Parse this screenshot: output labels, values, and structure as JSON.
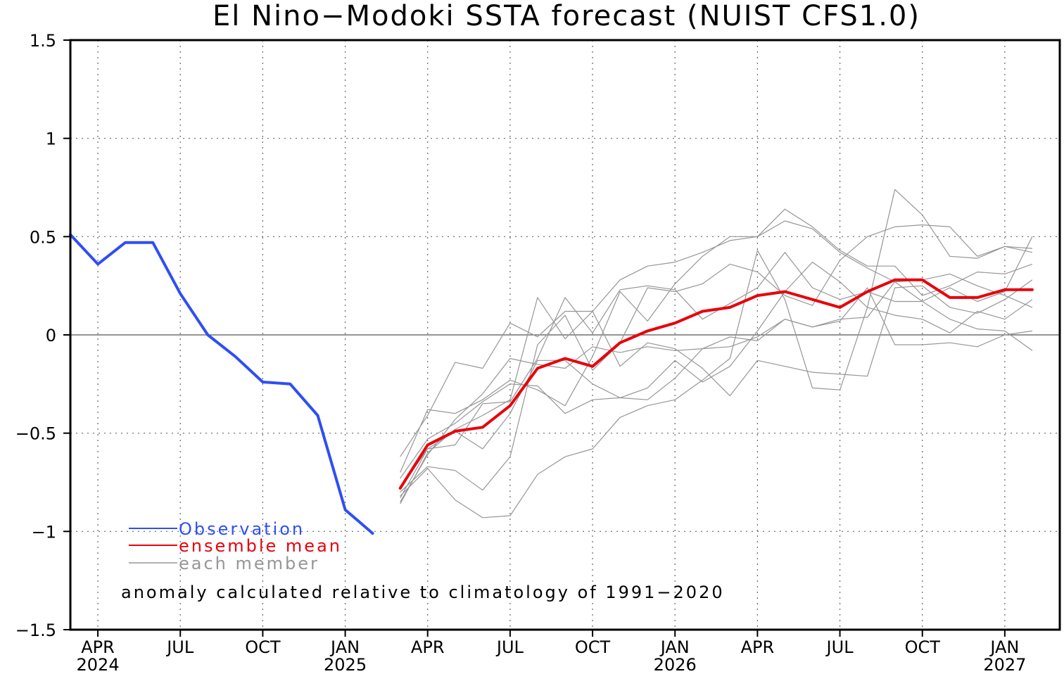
{
  "chart_data": {
    "type": "line",
    "title": "El Nino−Modoki SSTA forecast (NUIST CFS1.0)",
    "xlabel": "",
    "ylabel": "",
    "ylim": [
      -1.5,
      1.5
    ],
    "yticks": [
      {
        "value": 1.5,
        "label": "1.5"
      },
      {
        "value": 1,
        "label": "1"
      },
      {
        "value": 0.5,
        "label": "0.5"
      },
      {
        "value": 0,
        "label": "0"
      },
      {
        "value": -0.5,
        "label": "−0.5"
      },
      {
        "value": -1,
        "label": "−1"
      },
      {
        "value": -1.5,
        "label": "−1.5"
      }
    ],
    "xlim": [
      "2024-03",
      "2027-03"
    ],
    "xticks": [
      {
        "month": "2024-04",
        "label": "APR",
        "year": "2024"
      },
      {
        "month": "2024-07",
        "label": "JUL",
        "year": ""
      },
      {
        "month": "2024-10",
        "label": "OCT",
        "year": ""
      },
      {
        "month": "2025-01",
        "label": "JAN",
        "year": "2025"
      },
      {
        "month": "2025-04",
        "label": "APR",
        "year": ""
      },
      {
        "month": "2025-07",
        "label": "JUL",
        "year": ""
      },
      {
        "month": "2025-10",
        "label": "OCT",
        "year": ""
      },
      {
        "month": "2026-01",
        "label": "JAN",
        "year": "2026"
      },
      {
        "month": "2026-04",
        "label": "APR",
        "year": ""
      },
      {
        "month": "2026-07",
        "label": "JUL",
        "year": ""
      },
      {
        "month": "2026-10",
        "label": "OCT",
        "year": ""
      },
      {
        "month": "2027-01",
        "label": "JAN",
        "year": "2027"
      }
    ],
    "grid": true,
    "zero_line": true,
    "legend_position": "bottom-left",
    "annotation": "anomaly calculated relative to climatology of 1991−2020",
    "series": [
      {
        "name": "Observation",
        "color": "#2e4ef5",
        "width": 4,
        "x": [
          "2024-03",
          "2024-04",
          "2024-05",
          "2024-06",
          "2024-07",
          "2024-08",
          "2024-09",
          "2024-10",
          "2024-11",
          "2024-12",
          "2025-01",
          "2025-02"
        ],
        "values": [
          0.51,
          0.36,
          0.47,
          0.47,
          0.21,
          0.0,
          -0.11,
          -0.24,
          -0.25,
          -0.41,
          -0.89,
          -1.01
        ]
      },
      {
        "name": "ensemble mean",
        "color": "#e8000b",
        "width": 4,
        "x": [
          "2025-03",
          "2025-04",
          "2025-05",
          "2025-06",
          "2025-07",
          "2025-08",
          "2025-09",
          "2025-10",
          "2025-11",
          "2025-12",
          "2026-01",
          "2026-02",
          "2026-03",
          "2026-04",
          "2026-05",
          "2026-06",
          "2026-07",
          "2026-08",
          "2026-09",
          "2026-10",
          "2026-11",
          "2026-12",
          "2027-01",
          "2027-02"
        ],
        "values": [
          -0.78,
          -0.56,
          -0.49,
          -0.47,
          -0.36,
          -0.17,
          -0.12,
          -0.16,
          -0.04,
          0.02,
          0.06,
          0.12,
          0.14,
          0.2,
          0.22,
          0.18,
          0.14,
          0.22,
          0.28,
          0.28,
          0.19,
          0.19,
          0.23,
          0.23
        ]
      }
    ],
    "members": {
      "name": "each member",
      "color": "#969696",
      "width": 1.2,
      "x": [
        "2025-03",
        "2025-04",
        "2025-05",
        "2025-06",
        "2025-07",
        "2025-08",
        "2025-09",
        "2025-10",
        "2025-11",
        "2025-12",
        "2026-01",
        "2026-02",
        "2026-03",
        "2026-04",
        "2026-05",
        "2026-06",
        "2026-07",
        "2026-08",
        "2026-09",
        "2026-10",
        "2026-11",
        "2026-12",
        "2027-01",
        "2027-02"
      ],
      "values": [
        [
          -0.62,
          -0.41,
          -0.14,
          -0.17,
          0.06,
          -0.01,
          0.12,
          0.12,
          0.28,
          0.35,
          0.37,
          0.42,
          0.48,
          0.5,
          0.64,
          0.55,
          0.43,
          0.35,
          0.35,
          0.2,
          0.25,
          0.32,
          0.31,
          0.36
        ],
        [
          -0.7,
          -0.38,
          -0.4,
          -0.33,
          -0.23,
          -0.28,
          -0.36,
          -0.11,
          0.22,
          0.07,
          0.26,
          0.4,
          0.5,
          0.5,
          0.58,
          0.54,
          0.42,
          0.34,
          0.27,
          0.28,
          0.31,
          0.25,
          0.2,
          0.14
        ],
        [
          -0.73,
          -0.53,
          -0.45,
          -0.34,
          -0.25,
          -0.26,
          -0.4,
          -0.33,
          -0.32,
          -0.27,
          -0.13,
          -0.24,
          -0.16,
          0.02,
          0.22,
          0.37,
          0.27,
          0.14,
          0.1,
          0.08,
          0.01,
          0.12,
          0.08,
          0.18
        ],
        [
          -0.78,
          -0.58,
          -0.49,
          -0.58,
          -0.4,
          -0.13,
          -0.13,
          -0.25,
          -0.32,
          -0.33,
          -0.22,
          -0.07,
          -0.06,
          -0.01,
          0.08,
          0.04,
          0.08,
          0.09,
          0.27,
          0.17,
          0.24,
          0.17,
          0.22,
          0.5
        ],
        [
          -0.8,
          -0.67,
          -0.69,
          -0.79,
          -0.62,
          -0.05,
          0.1,
          -0.18,
          -0.04,
          0.24,
          0.22,
          0.26,
          0.36,
          0.32,
          0.2,
          0.15,
          0.38,
          0.5,
          0.55,
          0.56,
          0.55,
          0.4,
          0.45,
          0.44
        ],
        [
          -0.82,
          -0.68,
          -0.84,
          -0.93,
          -0.92,
          -0.71,
          -0.62,
          -0.58,
          -0.42,
          -0.36,
          -0.33,
          -0.23,
          -0.12,
          0.43,
          0.18,
          -0.27,
          -0.28,
          0.14,
          0.74,
          0.61,
          0.4,
          0.39,
          0.45,
          0.42
        ],
        [
          -0.83,
          -0.58,
          -0.56,
          -0.35,
          -0.34,
          -0.12,
          0.19,
          0.01,
          0.23,
          0.25,
          0.23,
          0.08,
          0.16,
          0.24,
          0.42,
          0.24,
          0.18,
          0.22,
          0.17,
          0.17,
          0.08,
          0.03,
          0.02,
          -0.08
        ],
        [
          -0.85,
          -0.61,
          -0.43,
          -0.3,
          -0.12,
          -0.15,
          -0.17,
          -0.06,
          -0.09,
          -0.06,
          -0.08,
          -0.07,
          -0.01,
          -0.03,
          0.08,
          0.04,
          0.07,
          0.24,
          -0.05,
          -0.05,
          -0.04,
          -0.06,
          0.0,
          0.02
        ],
        [
          -0.86,
          -0.6,
          -0.48,
          -0.41,
          -0.33,
          0.19,
          -0.02,
          0.12,
          -0.16,
          -0.04,
          -0.07,
          -0.17,
          -0.31,
          -0.13,
          -0.16,
          -0.19,
          -0.2,
          -0.21,
          0.24,
          0.25,
          0.14,
          0.11,
          0.18,
          0.28
        ]
      ]
    },
    "legend": [
      {
        "label": "Observation",
        "color": "#2e4ef5"
      },
      {
        "label": "ensemble mean",
        "color": "#e8000b"
      },
      {
        "label": "each member",
        "color": "#969696"
      }
    ]
  }
}
